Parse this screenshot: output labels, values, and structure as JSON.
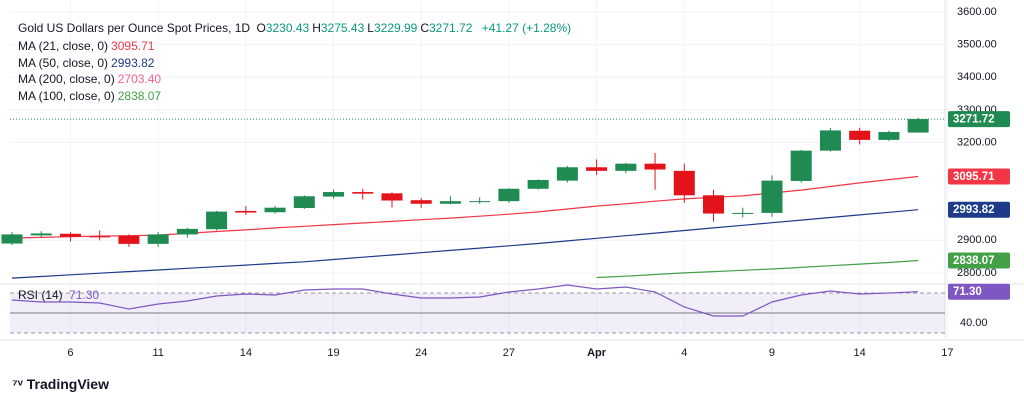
{
  "chart_data": {
    "type": "candlestick",
    "header": {
      "title": "Gold US Dollars per Ounce Spot Prices, 1D",
      "fields": [
        "O",
        "H",
        "L",
        "C"
      ],
      "change": "+41.27 (+1.28%)"
    },
    "up_color": "#1f8a52",
    "down_color": "#e3131c",
    "ohlc": [
      [
        2890,
        2925,
        2885,
        2918
      ],
      [
        2915,
        2928,
        2910,
        2921
      ],
      [
        2920,
        2925,
        2896,
        2911
      ],
      [
        2912,
        2930,
        2900,
        2910
      ],
      [
        2914,
        2918,
        2880,
        2889
      ],
      [
        2889,
        2925,
        2880,
        2918
      ],
      [
        2918,
        2938,
        2908,
        2935
      ],
      [
        2934,
        2990,
        2930,
        2988
      ],
      [
        2990,
        3005,
        2978,
        2985
      ],
      [
        2986,
        3005,
        2982,
        3000
      ],
      [
        2999,
        3038,
        2996,
        3035
      ],
      [
        3034,
        3056,
        3028,
        3048
      ],
      [
        3048,
        3058,
        3025,
        3043
      ],
      [
        3044,
        3047,
        3000,
        3022
      ],
      [
        3023,
        3030,
        3000,
        3012
      ],
      [
        3012,
        3035,
        3010,
        3020
      ],
      [
        3018,
        3032,
        3012,
        3020
      ],
      [
        3020,
        3060,
        3015,
        3058
      ],
      [
        3058,
        3087,
        3055,
        3085
      ],
      [
        3083,
        3128,
        3077,
        3124
      ],
      [
        3124,
        3148,
        3100,
        3113
      ],
      [
        3113,
        3138,
        3105,
        3135
      ],
      [
        3135,
        3168,
        3055,
        3117
      ],
      [
        3113,
        3135,
        3015,
        3038
      ],
      [
        3038,
        3055,
        2957,
        2982
      ],
      [
        2982,
        3000,
        2970,
        2984
      ],
      [
        2984,
        3099,
        2972,
        3083
      ],
      [
        3082,
        3177,
        3077,
        3175
      ],
      [
        3175,
        3245,
        3172,
        3237
      ],
      [
        3236,
        3245,
        3194,
        3208
      ],
      [
        3208,
        3236,
        3205,
        3232
      ],
      [
        3230.43,
        3275.43,
        3229.99,
        3271.72
      ]
    ],
    "xticks": [
      "6",
      "11",
      "14",
      "19",
      "24",
      "27",
      "Apr",
      "4",
      "9",
      "14",
      "17"
    ],
    "ylim": [
      2769,
      3637
    ],
    "yticks": [
      {
        "value": 2800,
        "label": "2800.00"
      },
      {
        "value": 2900,
        "label": "2900.00"
      },
      {
        "value": 3200,
        "label": "3200.00"
      },
      {
        "value": 3300,
        "label": "3300.00"
      },
      {
        "value": 3400,
        "label": "3400.00"
      },
      {
        "value": 3500,
        "label": "3500.00"
      },
      {
        "value": 3600,
        "label": "3600.00"
      }
    ],
    "grid": true,
    "series": [
      {
        "name": "MA (21, close, 0)",
        "color": "#f23645",
        "last": 3095.71,
        "values": [
          2907,
          2909,
          2911,
          2913,
          2914,
          2916,
          2921,
          2927,
          2932,
          2938,
          2943,
          2948,
          2953,
          2958,
          2963,
          2968,
          2974,
          2980,
          2987,
          2996,
          3005,
          3012,
          3020,
          3027,
          3032,
          3036,
          3045,
          3054,
          3065,
          3076,
          3086,
          3095.71
        ]
      },
      {
        "name": "MA (50, close, 0)",
        "color": "#1e3a8a",
        "last": 2993.82,
        "values": [
          2784,
          2789,
          2794,
          2799,
          2804,
          2809,
          2814,
          2819,
          2824,
          2829,
          2834,
          2841,
          2848,
          2855,
          2862,
          2869,
          2876,
          2883,
          2890,
          2898,
          2906,
          2914,
          2922,
          2930,
          2938,
          2946,
          2954,
          2962,
          2970,
          2978,
          2986,
          2993.82
        ]
      },
      {
        "name": "MA (200, close, 0)",
        "color": "#f06292",
        "last": 2703.4,
        "last_label": "2703.40",
        "values": [
          null,
          null,
          null,
          null,
          null,
          null,
          null,
          null,
          null,
          null,
          null,
          null,
          null,
          null,
          null,
          null,
          null,
          null,
          null,
          null,
          null,
          null,
          null,
          null,
          null,
          null,
          null,
          null,
          null,
          null,
          null,
          null
        ]
      },
      {
        "name": "MA (100, close, 0)",
        "color": "#43a047",
        "last": 2838.07,
        "values": [
          null,
          null,
          null,
          null,
          null,
          null,
          null,
          null,
          null,
          null,
          null,
          null,
          null,
          null,
          null,
          null,
          null,
          null,
          null,
          null,
          2786,
          2790,
          2795,
          2800,
          2804,
          2808,
          2812,
          2817,
          2822,
          2827,
          2832,
          2838.07
        ]
      }
    ],
    "rsi": {
      "name": "RSI (14)",
      "color": "#7e57c2",
      "last": 71.3,
      "last_label": "71.30",
      "values": [
        63,
        61,
        61,
        60,
        54,
        59,
        62,
        67,
        69,
        68,
        73,
        74,
        74,
        69,
        65,
        65,
        66,
        71,
        74,
        78,
        74,
        76,
        71,
        56,
        47,
        47,
        61,
        68,
        72,
        69,
        70,
        71.3
      ],
      "ylim": [
        25,
        79
      ],
      "yticks": [
        {
          "value": 40,
          "label": "40.00"
        }
      ],
      "bands": [
        30,
        70
      ],
      "midline": 50
    },
    "brand": "TradingView"
  }
}
